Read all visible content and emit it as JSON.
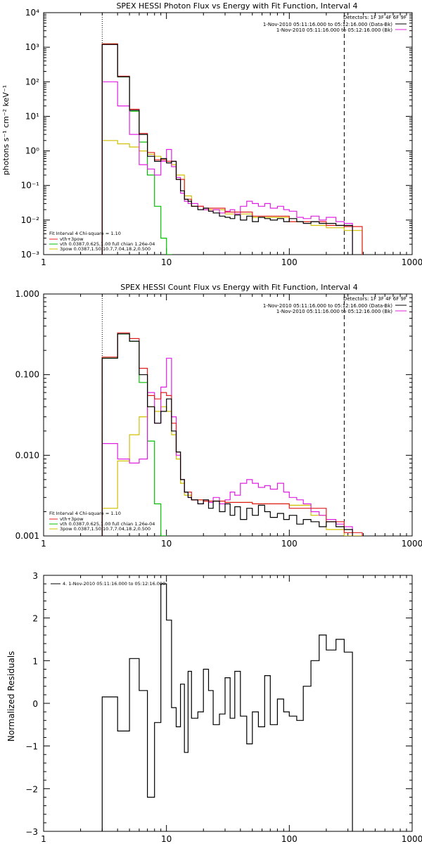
{
  "chart_data": [
    {
      "type": "line",
      "title": "SPEX HESSI Photon Flux vs Energy with Fit Function, Interval 4",
      "xlabel": "",
      "ylabel": "photons s⁻¹ cm⁻² keV⁻¹",
      "xscale": "log",
      "yscale": "log",
      "xlim": [
        1,
        1000
      ],
      "ylim": [
        0.001,
        10000
      ],
      "xticks": [
        "1",
        "10",
        "100",
        "1000"
      ],
      "yticks": [
        "10⁻³",
        "10⁻²",
        "10⁻¹",
        "10⁰",
        "10¹",
        "10²",
        "10³",
        "10⁴"
      ],
      "vlines": [
        3,
        280
      ],
      "legend_top": [
        "Detectors: 1F 3F 4F 6F 9F",
        "1-Nov-2010 05:11:16.000 to 05:12:16.000 (Data-Bk)",
        "1-Nov-2010 05:11:16.000 to 05:12:16.000 (Bk)"
      ],
      "legend_bottom": [
        "Fit Interval  4    Chi-square = 1.10",
        "vth+3pow",
        "vth 0.0387,0.625,1.00  full chian 1.26e-04",
        "3pow 0.0387,1.50,10.7,7.04,18.2,0.500"
      ],
      "series": [
        {
          "role": "data",
          "color": "#000000",
          "x": [
            3,
            4,
            5,
            6,
            7,
            8,
            9,
            10,
            11,
            12,
            13,
            14,
            15,
            16,
            18,
            20,
            22,
            24,
            27,
            30,
            33,
            36,
            40,
            45,
            50,
            56,
            63,
            70,
            80,
            90,
            100,
            115,
            130,
            150,
            175,
            200,
            240,
            280
          ],
          "y": [
            1200,
            140,
            15,
            3,
            0.7,
            0.5,
            0.6,
            0.45,
            0.5,
            0.15,
            0.07,
            0.04,
            0.035,
            0.025,
            0.02,
            0.022,
            0.018,
            0.016,
            0.013,
            0.012,
            0.011,
            0.014,
            0.01,
            0.013,
            0.009,
            0.012,
            0.011,
            0.01,
            0.011,
            0.009,
            0.011,
            0.009,
            0.008,
            0.009,
            0.008,
            0.008,
            0.007,
            0.007
          ]
        },
        {
          "role": "bk",
          "color": "#e020e0",
          "x": [
            3,
            4,
            5,
            6,
            7,
            8,
            9,
            10,
            11,
            12,
            13,
            14,
            15,
            16,
            18,
            20,
            22,
            24,
            27,
            30,
            33,
            36,
            40,
            45,
            50,
            56,
            63,
            70,
            80,
            90,
            100,
            115,
            130,
            150,
            175,
            200,
            240,
            280
          ],
          "y": [
            100,
            20,
            3,
            0.4,
            0.3,
            0.2,
            0.5,
            1.1,
            0.35,
            0.17,
            0.06,
            0.035,
            0.03,
            0.03,
            0.025,
            0.02,
            0.018,
            0.02,
            0.016,
            0.018,
            0.02,
            0.015,
            0.025,
            0.035,
            0.03,
            0.025,
            0.03,
            0.022,
            0.025,
            0.02,
            0.018,
            0.012,
            0.011,
            0.013,
            0.01,
            0.012,
            0.009,
            0.008
          ]
        },
        {
          "role": "total",
          "color": "#e02020",
          "x": [
            3,
            4,
            5,
            6,
            7,
            8,
            9,
            10,
            12,
            14,
            16,
            20,
            30,
            50,
            100,
            200,
            280
          ],
          "y": [
            1250,
            145,
            16,
            3.2,
            0.9,
            0.55,
            0.55,
            0.5,
            0.15,
            0.04,
            0.025,
            0.022,
            0.017,
            0.013,
            0.009,
            0.007,
            0.0065
          ]
        },
        {
          "role": "vth",
          "color": "#00c000",
          "x": [
            3,
            4,
            5,
            6,
            7,
            8,
            9,
            10
          ],
          "y": [
            1250,
            140,
            14,
            1.8,
            0.2,
            0.025,
            0.003,
            0.001
          ]
        },
        {
          "role": "3pow",
          "color": "#d0c000",
          "x": [
            3,
            4,
            5,
            6,
            7,
            8,
            9,
            10,
            11,
            12,
            14,
            16,
            20,
            30,
            50,
            100,
            150,
            200,
            280
          ],
          "y": [
            2,
            1.6,
            1.3,
            1,
            0.8,
            0.7,
            0.6,
            0.5,
            0.4,
            0.2,
            0.05,
            0.025,
            0.02,
            0.015,
            0.012,
            0.009,
            0.007,
            0.006,
            0.005
          ]
        }
      ]
    },
    {
      "type": "line",
      "title": "SPEX HESSI Count Flux vs Energy with Fit Function, Interval 4",
      "xlabel": "",
      "ylabel": "",
      "xscale": "log",
      "yscale": "log",
      "xlim": [
        1,
        1000
      ],
      "ylim": [
        0.001,
        1
      ],
      "xticks": [
        "1",
        "10",
        "100",
        "1000"
      ],
      "yticks": [
        "0.001",
        "0.010",
        "0.100",
        "1.000"
      ],
      "vlines": [
        3,
        280
      ],
      "legend_top": [
        "Detectors: 1F 3F 4F 6F 9F",
        "1-Nov-2010 05:11:16.000 to 05:12:16.000 (Data-Bk)",
        "1-Nov-2010 05:11:16.000 to 05:12:16.000 (Bk)"
      ],
      "legend_bottom": [
        "Fit Interval  4    Chi-square = 1.10",
        "vth+3pow",
        "vth 0.0387,0.625,1.00  full chian 1.26e-04",
        "3pow 0.0387,1.50,10.7,7.04,18.2,0.500"
      ],
      "series": [
        {
          "role": "data",
          "color": "#000000",
          "x": [
            3,
            4,
            5,
            6,
            7,
            8,
            9,
            10,
            11,
            12,
            13,
            14,
            15,
            16,
            18,
            20,
            22,
            24,
            27,
            30,
            33,
            36,
            40,
            45,
            50,
            56,
            63,
            70,
            80,
            90,
            100,
            115,
            130,
            150,
            175,
            200,
            240,
            280
          ],
          "y": [
            0.16,
            0.32,
            0.26,
            0.1,
            0.04,
            0.025,
            0.035,
            0.05,
            0.02,
            0.011,
            0.005,
            0.0035,
            0.003,
            0.0028,
            0.0025,
            0.0028,
            0.0022,
            0.0027,
            0.002,
            0.0025,
            0.0018,
            0.0023,
            0.0016,
            0.0022,
            0.0018,
            0.0024,
            0.002,
            0.0017,
            0.0019,
            0.0016,
            0.0018,
            0.0014,
            0.0016,
            0.0015,
            0.0013,
            0.0015,
            0.0013,
            0.0012
          ]
        },
        {
          "role": "bk",
          "color": "#e020e0",
          "x": [
            3,
            4,
            5,
            6,
            7,
            8,
            9,
            10,
            11,
            12,
            13,
            14,
            15,
            16,
            18,
            20,
            22,
            24,
            27,
            30,
            33,
            36,
            40,
            45,
            50,
            56,
            63,
            70,
            80,
            90,
            100,
            115,
            130,
            150,
            175,
            200,
            240,
            280
          ],
          "y": [
            0.014,
            0.009,
            0.008,
            0.009,
            0.06,
            0.025,
            0.07,
            0.16,
            0.03,
            0.01,
            0.005,
            0.0035,
            0.003,
            0.0028,
            0.0025,
            0.0028,
            0.0026,
            0.003,
            0.0025,
            0.0028,
            0.0035,
            0.0032,
            0.0045,
            0.005,
            0.0045,
            0.004,
            0.0042,
            0.0038,
            0.0045,
            0.0035,
            0.003,
            0.0028,
            0.0025,
            0.002,
            0.0018,
            0.0016,
            0.0014,
            0.0013
          ]
        },
        {
          "role": "total",
          "color": "#e02020",
          "x": [
            3,
            4,
            5,
            6,
            7,
            8,
            9,
            10,
            11,
            12,
            13,
            14,
            16,
            20,
            30,
            50,
            100,
            200,
            280
          ],
          "y": [
            0.165,
            0.33,
            0.28,
            0.12,
            0.055,
            0.05,
            0.06,
            0.055,
            0.025,
            0.011,
            0.005,
            0.0035,
            0.0028,
            0.0027,
            0.0026,
            0.0025,
            0.0022,
            0.0015,
            0.0011
          ]
        },
        {
          "role": "vth",
          "color": "#00c000",
          "x": [
            3,
            4,
            5,
            6,
            7,
            8,
            9
          ],
          "y": [
            0.16,
            0.32,
            0.26,
            0.08,
            0.015,
            0.0025,
            0.001
          ]
        },
        {
          "role": "3pow",
          "color": "#d0c000",
          "x": [
            3,
            4,
            5,
            6,
            7,
            8,
            9,
            10,
            11,
            12,
            13,
            14,
            16,
            20,
            30,
            50,
            100,
            150,
            200,
            280
          ],
          "y": [
            0.0022,
            0.0085,
            0.018,
            0.03,
            0.04,
            0.035,
            0.04,
            0.035,
            0.018,
            0.009,
            0.0045,
            0.0032,
            0.0028,
            0.0027,
            0.0026,
            0.0025,
            0.0024,
            0.0018,
            0.0012,
            0.001
          ]
        }
      ]
    },
    {
      "type": "line",
      "title": "",
      "xlabel": "",
      "ylabel": "Normalized Residuals",
      "xscale": "log",
      "yscale": "linear",
      "xlim": [
        1,
        1000
      ],
      "ylim": [
        -3,
        3
      ],
      "xticks": [
        "1",
        "10",
        "100",
        "1000"
      ],
      "yticks": [
        "−3",
        "−2",
        "−1",
        "0",
        "1",
        "2",
        "3"
      ],
      "legend_top": [
        "4.  1-Nov-2010 05:11:16.000 to 05:12:16.000"
      ],
      "series": [
        {
          "role": "residual",
          "color": "#000000",
          "x": [
            3,
            4,
            5,
            6,
            7,
            8,
            9,
            10,
            11,
            12,
            13,
            14,
            15,
            16,
            18,
            20,
            22,
            24,
            27,
            30,
            33,
            36,
            40,
            45,
            50,
            56,
            63,
            70,
            80,
            90,
            100,
            115,
            130,
            150,
            175,
            200,
            240,
            280
          ],
          "y": [
            0.15,
            -0.65,
            1.05,
            0.3,
            -2.2,
            -0.45,
            2.8,
            1.95,
            -0.1,
            -0.55,
            0.45,
            -1.15,
            0.75,
            -0.35,
            -0.2,
            0.8,
            0.3,
            -0.5,
            -0.25,
            0.6,
            -0.35,
            0.75,
            -0.3,
            -0.95,
            -0.2,
            -0.55,
            0.65,
            -0.5,
            0.1,
            -0.2,
            -0.3,
            -0.4,
            0.4,
            1.0,
            1.6,
            1.25,
            1.5,
            1.2
          ]
        }
      ]
    }
  ]
}
